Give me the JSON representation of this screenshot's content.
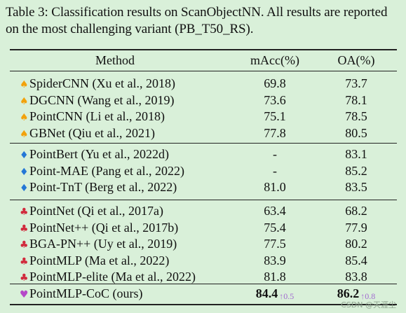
{
  "caption": "Table 3: Classification results on ScanObjectNN. All results are reported on the most challenging variant (PB_T50_RS).",
  "table": {
    "headers": {
      "method": "Method",
      "macc": "mAcc(%)",
      "oa": "OA(%)"
    },
    "groups": [
      {
        "symbol": "♠",
        "symbol_icon": "spade-icon",
        "symbol_color": "#f2a20c",
        "rows": [
          {
            "method": "SpiderCNN (Xu et al., 2018)",
            "macc": "69.8",
            "oa": "73.7"
          },
          {
            "method": "DGCNN (Wang et al., 2019)",
            "macc": "73.6",
            "oa": "78.1"
          },
          {
            "method": "PointCNN (Li et al., 2018)",
            "macc": "75.1",
            "oa": "78.5"
          },
          {
            "method": "GBNet (Qiu et al., 2021)",
            "macc": "77.8",
            "oa": "80.5"
          }
        ]
      },
      {
        "symbol": "♦",
        "symbol_icon": "diamond-icon",
        "symbol_color": "#2477d6",
        "rows": [
          {
            "method": "PointBert (Yu et al., 2022d)",
            "macc": "-",
            "oa": "83.1"
          },
          {
            "method": "Point-MAE (Pang et al., 2022)",
            "macc": "-",
            "oa": "85.2"
          },
          {
            "method": "Point-TnT (Berg et al., 2022)",
            "macc": "81.0",
            "oa": "83.5"
          }
        ]
      },
      {
        "symbol": "♣",
        "symbol_icon": "club-icon",
        "symbol_color": "#d12a3c",
        "rows": [
          {
            "method": "PointNet (Qi et al., 2017a)",
            "macc": "63.4",
            "oa": "68.2"
          },
          {
            "method": "PointNet++ (Qi et al., 2017b)",
            "macc": "75.4",
            "oa": "77.9"
          },
          {
            "method": "BGA-PN++ (Uy et al., 2019)",
            "macc": "77.5",
            "oa": "80.2"
          },
          {
            "method": "PointMLP (Ma et al., 2022)",
            "macc": "83.9",
            "oa": "85.4"
          },
          {
            "method": "PointMLP-elite (Ma et al., 2022)",
            "macc": "81.8",
            "oa": "83.8"
          }
        ]
      }
    ],
    "ours": {
      "symbol": "♥",
      "symbol_icon": "heart-icon",
      "symbol_color": "#b548c8",
      "method": "PointMLP-CoC (ours)",
      "macc": "84.4",
      "macc_gain": "↑0.5",
      "oa": "86.2",
      "oa_gain": "↑0.8"
    }
  },
  "watermark": "CSDN @天涯尘"
}
